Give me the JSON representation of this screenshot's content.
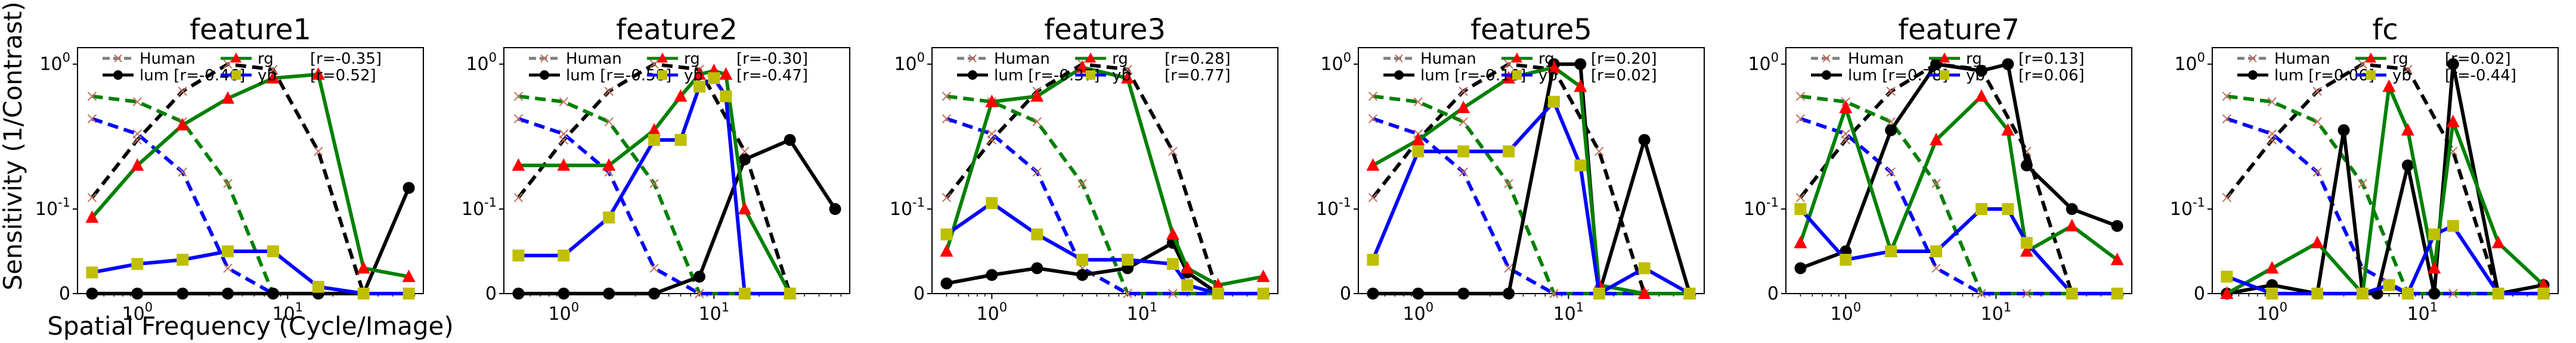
{
  "figure": {
    "ylabel": "Sensitivity (1/Contrast)",
    "xlabel": "Spatial Frequency (Cycle/Image)"
  },
  "series_styles": {
    "human": {
      "color": "#9a9a9a",
      "marker": "x",
      "dash": true
    },
    "lum": {
      "color": "#000000",
      "marker": "circle"
    },
    "rg": {
      "color": "#008000",
      "marker": "triangle",
      "marker_color": "#ff0000"
    },
    "yb": {
      "color": "#0000ff",
      "marker": "square",
      "marker_color": "#bfbf00"
    }
  },
  "chart_data": [
    {
      "type": "line",
      "title": "feature1",
      "xscale": "log",
      "yscale": "symlog",
      "xticks": [
        "10^0",
        "10^1"
      ],
      "yticks": [
        "0",
        "10^-1",
        "10^0"
      ],
      "ylim": [
        0,
        1.3
      ],
      "legend": {
        "human": "Human",
        "lum": "lum [r=-0.46]",
        "rg": "rg",
        "rg_r": "[r=-0.35]",
        "yb": "yb",
        "yb_r": "[r=0.52]"
      },
      "human_reference": {
        "ach_x": [
          0.5,
          1,
          2,
          4,
          8,
          16,
          32
        ],
        "ach": [
          0.12,
          0.3,
          0.65,
          1.0,
          0.92,
          0.25,
          0.0
        ],
        "rg_x": [
          0.5,
          1,
          2,
          4,
          8,
          16,
          32
        ],
        "rg": [
          0.6,
          0.55,
          0.4,
          0.15,
          0.0,
          0.0,
          0.0
        ],
        "yb_x": [
          0.5,
          1,
          2,
          4,
          8,
          16,
          32
        ],
        "yb": [
          0.42,
          0.33,
          0.18,
          0.03,
          0.0,
          0.0,
          0.0
        ]
      },
      "series": [
        {
          "name": "lum",
          "x": [
            0.5,
            1,
            2,
            4,
            8,
            16,
            32,
            64
          ],
          "y": [
            0.0,
            0.0,
            0.0,
            0.0,
            0.0,
            0.0,
            0.0,
            0.14
          ]
        },
        {
          "name": "rg",
          "x": [
            0.5,
            1,
            2,
            4,
            8,
            16,
            32,
            64
          ],
          "y": [
            0.09,
            0.2,
            0.38,
            0.58,
            0.8,
            0.85,
            0.03,
            0.02
          ]
        },
        {
          "name": "yb",
          "x": [
            0.5,
            1,
            2,
            4,
            8,
            16,
            32,
            64
          ],
          "y": [
            0.025,
            0.035,
            0.04,
            0.05,
            0.05,
            0.008,
            0.0,
            0.0
          ]
        }
      ]
    },
    {
      "type": "line",
      "title": "feature2",
      "xscale": "log",
      "yscale": "symlog",
      "xticks": [
        "10^0",
        "10^1"
      ],
      "yticks": [
        "0",
        "10^-1",
        "10^0"
      ],
      "ylim": [
        0,
        1.3
      ],
      "legend": {
        "human": "Human",
        "lum": "lum [r=-0.58]",
        "rg": "rg",
        "rg_r": "[r=-0.30]",
        "yb": "yb",
        "yb_r": "[r=-0.47]"
      },
      "human_reference": {
        "ach_x": [
          0.5,
          1,
          2,
          4,
          8,
          16,
          32
        ],
        "ach": [
          0.12,
          0.3,
          0.65,
          1.0,
          0.92,
          0.25,
          0.0
        ],
        "rg_x": [
          0.5,
          1,
          2,
          4,
          8,
          16,
          32
        ],
        "rg": [
          0.6,
          0.55,
          0.4,
          0.15,
          0.0,
          0.0,
          0.0
        ],
        "yb_x": [
          0.5,
          1,
          2,
          4,
          8,
          16,
          32
        ],
        "yb": [
          0.42,
          0.33,
          0.18,
          0.03,
          0.0,
          0.0,
          0.0
        ]
      },
      "series": [
        {
          "name": "lum",
          "x": [
            0.5,
            1,
            2,
            4,
            8,
            16,
            32,
            64
          ],
          "y": [
            0.0,
            0.0,
            0.0,
            0.0,
            0.02,
            0.22,
            0.3,
            0.1
          ]
        },
        {
          "name": "rg",
          "x": [
            0.5,
            1,
            2,
            4,
            6,
            8,
            10,
            12,
            16,
            32
          ],
          "y": [
            0.2,
            0.2,
            0.2,
            0.35,
            0.6,
            0.85,
            0.9,
            0.85,
            0.1,
            0.0
          ]
        },
        {
          "name": "yb",
          "x": [
            0.5,
            1,
            2,
            4,
            6,
            8,
            10,
            12,
            16,
            32
          ],
          "y": [
            0.045,
            0.045,
            0.09,
            0.3,
            0.3,
            0.7,
            0.8,
            0.6,
            0.0,
            0.0
          ]
        }
      ]
    },
    {
      "type": "line",
      "title": "feature3",
      "xscale": "log",
      "yscale": "symlog",
      "xticks": [
        "10^0",
        "10^1"
      ],
      "yticks": [
        "0",
        "10^-1",
        "10^0"
      ],
      "ylim": [
        0,
        1.3
      ],
      "legend": {
        "human": "Human",
        "lum": "lum [r=-0.37]",
        "rg": "rg",
        "rg_r": "[r=0.28]",
        "yb": "yb",
        "yb_r": "[r=0.77]"
      },
      "human_reference": {
        "ach_x": [
          0.5,
          1,
          2,
          4,
          8,
          16,
          32
        ],
        "ach": [
          0.12,
          0.3,
          0.65,
          1.0,
          0.92,
          0.25,
          0.0
        ],
        "rg_x": [
          0.5,
          1,
          2,
          4,
          8,
          16,
          32
        ],
        "rg": [
          0.6,
          0.55,
          0.4,
          0.15,
          0.0,
          0.0,
          0.0
        ],
        "yb_x": [
          0.5,
          1,
          2,
          4,
          8,
          16,
          32
        ],
        "yb": [
          0.42,
          0.33,
          0.18,
          0.03,
          0.0,
          0.0,
          0.0
        ]
      },
      "series": [
        {
          "name": "lum",
          "x": [
            0.5,
            1,
            2,
            4,
            8,
            16,
            20,
            32,
            64
          ],
          "y": [
            0.012,
            0.022,
            0.03,
            0.022,
            0.03,
            0.06,
            0.025,
            0.0,
            0.0
          ]
        },
        {
          "name": "rg",
          "x": [
            0.5,
            1,
            2,
            4,
            8,
            16,
            20,
            32,
            64
          ],
          "y": [
            0.05,
            0.55,
            0.6,
            0.95,
            0.8,
            0.07,
            0.03,
            0.01,
            0.02
          ]
        },
        {
          "name": "yb",
          "x": [
            0.5,
            1,
            2,
            4,
            8,
            16,
            20,
            32,
            64
          ],
          "y": [
            0.07,
            0.11,
            0.07,
            0.04,
            0.04,
            0.035,
            0.01,
            0.0,
            0.0
          ]
        }
      ]
    },
    {
      "type": "line",
      "title": "feature5",
      "xscale": "log",
      "yscale": "symlog",
      "xticks": [
        "10^0",
        "10^1"
      ],
      "yticks": [
        "0",
        "10^-1",
        "10^0"
      ],
      "ylim": [
        0,
        1.3
      ],
      "legend": {
        "human": "Human",
        "lum": "lum [r=-0.10]",
        "rg": "rg",
        "rg_r": "[r=0.20]",
        "yb": "yb",
        "yb_r": "[r=0.02]"
      },
      "human_reference": {
        "ach_x": [
          0.5,
          1,
          2,
          4,
          8,
          16,
          32
        ],
        "ach": [
          0.12,
          0.3,
          0.65,
          1.0,
          0.92,
          0.25,
          0.0
        ],
        "rg_x": [
          0.5,
          1,
          2,
          4,
          8,
          16,
          32
        ],
        "rg": [
          0.6,
          0.55,
          0.4,
          0.15,
          0.0,
          0.0,
          0.0
        ],
        "yb_x": [
          0.5,
          1,
          2,
          4,
          8,
          16,
          32
        ],
        "yb": [
          0.42,
          0.33,
          0.18,
          0.03,
          0.0,
          0.0,
          0.0
        ]
      },
      "series": [
        {
          "name": "lum",
          "x": [
            0.5,
            1,
            2,
            4,
            8,
            12,
            16,
            32,
            64
          ],
          "y": [
            0.0,
            0.0,
            0.0,
            0.0,
            1.0,
            1.0,
            0.0,
            0.3,
            0.0
          ]
        },
        {
          "name": "rg",
          "x": [
            0.5,
            1,
            2,
            4,
            8,
            12,
            16,
            32,
            64
          ],
          "y": [
            0.2,
            0.3,
            0.5,
            0.8,
            0.95,
            0.7,
            0.01,
            0.0,
            0.0
          ]
        },
        {
          "name": "yb",
          "x": [
            0.5,
            1,
            2,
            4,
            8,
            12,
            16,
            32,
            64
          ],
          "y": [
            0.04,
            0.25,
            0.25,
            0.25,
            0.55,
            0.2,
            0.0,
            0.03,
            0.0
          ]
        }
      ]
    },
    {
      "type": "line",
      "title": "feature7",
      "xscale": "log",
      "yscale": "symlog",
      "xticks": [
        "10^0",
        "10^1"
      ],
      "yticks": [
        "0",
        "10^-1",
        "10^0"
      ],
      "ylim": [
        0,
        1.3
      ],
      "legend": {
        "human": "Human",
        "lum": "lum [r=0.78]",
        "rg": "rg",
        "rg_r": "[r=0.13]",
        "yb": "yb",
        "yb_r": "[r=0.06]"
      },
      "human_reference": {
        "ach_x": [
          0.5,
          1,
          2,
          4,
          8,
          16,
          32
        ],
        "ach": [
          0.12,
          0.3,
          0.65,
          1.0,
          0.92,
          0.25,
          0.0
        ],
        "rg_x": [
          0.5,
          1,
          2,
          4,
          8,
          16,
          32
        ],
        "rg": [
          0.6,
          0.55,
          0.4,
          0.15,
          0.0,
          0.0,
          0.0
        ],
        "yb_x": [
          0.5,
          1,
          2,
          4,
          8,
          16,
          32
        ],
        "yb": [
          0.42,
          0.33,
          0.18,
          0.03,
          0.0,
          0.0,
          0.0
        ]
      },
      "series": [
        {
          "name": "lum",
          "x": [
            0.5,
            1,
            2,
            4,
            8,
            12,
            16,
            32,
            64
          ],
          "y": [
            0.03,
            0.05,
            0.35,
            1.0,
            0.9,
            1.0,
            0.2,
            0.1,
            0.08
          ]
        },
        {
          "name": "rg",
          "x": [
            0.5,
            1,
            2,
            4,
            8,
            12,
            16,
            32,
            64
          ],
          "y": [
            0.06,
            0.5,
            0.05,
            0.3,
            0.6,
            0.35,
            0.05,
            0.08,
            0.04
          ]
        },
        {
          "name": "yb",
          "x": [
            0.5,
            1,
            2,
            4,
            8,
            12,
            16,
            32,
            64
          ],
          "y": [
            0.1,
            0.04,
            0.05,
            0.05,
            0.1,
            0.1,
            0.06,
            0.0,
            0.0
          ]
        }
      ]
    },
    {
      "type": "line",
      "title": "fc",
      "xscale": "log",
      "yscale": "symlog",
      "xticks": [
        "10^0",
        "10^1"
      ],
      "yticks": [
        "0",
        "10^-1",
        "10^0"
      ],
      "ylim": [
        0,
        1.3
      ],
      "legend": {
        "human": "Human",
        "lum": "lum [r=0.06]",
        "rg": "rg",
        "rg_r": "[r=0.02]",
        "yb": "yb",
        "yb_r": "[r=-0.44]"
      },
      "human_reference": {
        "ach_x": [
          0.5,
          1,
          2,
          4,
          8,
          16,
          32
        ],
        "ach": [
          0.12,
          0.3,
          0.65,
          1.0,
          0.92,
          0.25,
          0.0
        ],
        "rg_x": [
          0.5,
          1,
          2,
          4,
          8,
          16,
          32
        ],
        "rg": [
          0.6,
          0.55,
          0.4,
          0.15,
          0.0,
          0.0,
          0.0
        ],
        "yb_x": [
          0.5,
          1,
          2,
          4,
          8,
          16,
          32
        ],
        "yb": [
          0.42,
          0.33,
          0.18,
          0.03,
          0.0,
          0.0,
          0.0
        ]
      },
      "series": [
        {
          "name": "lum",
          "x": [
            0.5,
            1,
            2,
            3,
            4,
            5,
            8,
            12,
            16,
            32,
            64
          ],
          "y": [
            0.0,
            0.01,
            0.0,
            0.35,
            0.0,
            0.0,
            0.2,
            0.0,
            1.0,
            0.0,
            0.01
          ]
        },
        {
          "name": "rg",
          "x": [
            0.5,
            1,
            2,
            4,
            6,
            8,
            12,
            16,
            32,
            64
          ],
          "y": [
            0.0,
            0.03,
            0.06,
            0.0,
            0.7,
            0.35,
            0.03,
            0.4,
            0.06,
            0.01
          ]
        },
        {
          "name": "yb",
          "x": [
            0.5,
            1,
            2,
            4,
            6,
            8,
            12,
            16,
            32,
            64
          ],
          "y": [
            0.02,
            0.0,
            0.0,
            0.0,
            0.01,
            0.0,
            0.07,
            0.08,
            0.0,
            0.0
          ]
        }
      ]
    }
  ]
}
